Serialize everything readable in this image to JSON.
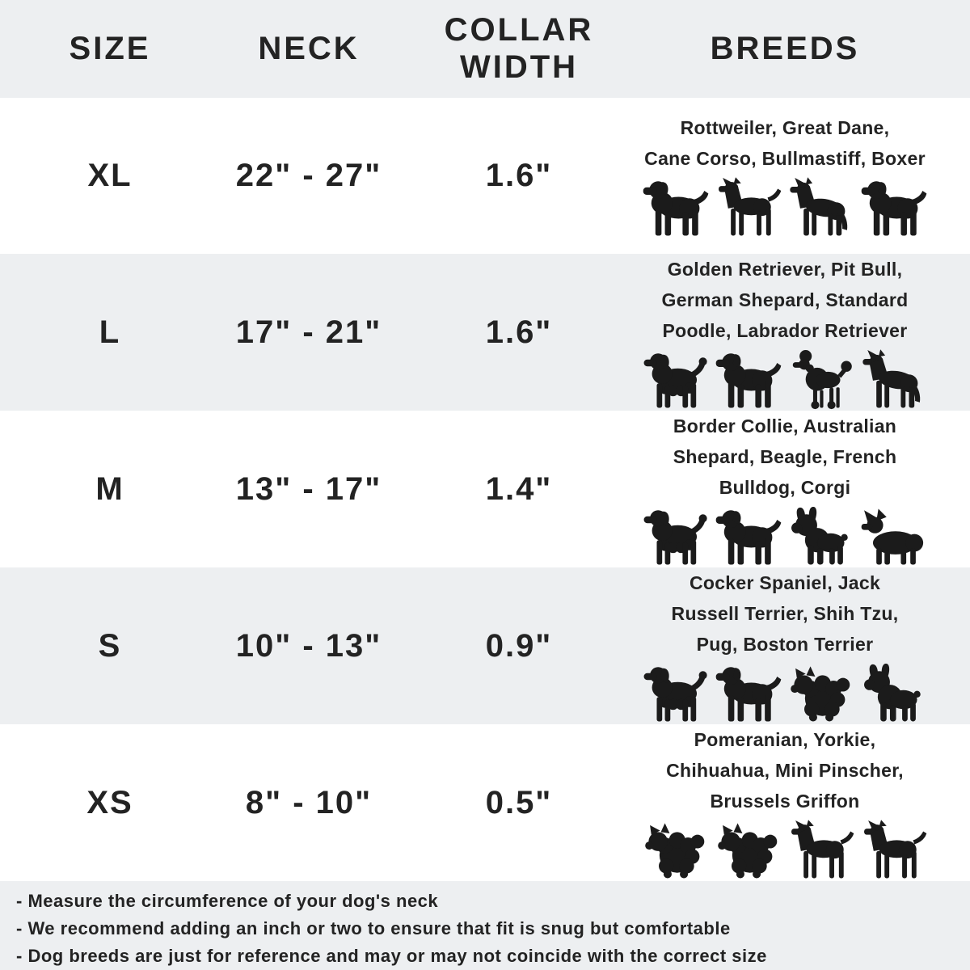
{
  "theme": {
    "band_gray": "#edeff1",
    "band_white": "#ffffff",
    "text_color": "#232323",
    "silhouette_color": "#1b1b1b"
  },
  "header": {
    "size": "SIZE",
    "neck": "NECK",
    "collar_width": "COLLAR WIDTH",
    "breeds": "BREEDS"
  },
  "rows": [
    {
      "size": "XL",
      "neck": "22\" - 27\"",
      "collar_width": "1.6\"",
      "breeds_lines": [
        "Rottweiler, Great Dane,",
        "Cane Corso, Bullmastiff, Boxer"
      ],
      "icons": [
        {
          "name": "rottweiler-icon",
          "shape": "sym-stocky"
        },
        {
          "name": "great-dane-icon",
          "shape": "sym-prick"
        },
        {
          "name": "doberman-icon",
          "shape": "sym-shepherd"
        },
        {
          "name": "bullmastiff-icon",
          "shape": "sym-stocky"
        }
      ]
    },
    {
      "size": "L",
      "neck": "17\" - 21\"",
      "collar_width": "1.6\"",
      "breeds_lines": [
        "Golden Retriever, Pit Bull,",
        "German Shepard, Standard",
        "Poodle, Labrador Retriever"
      ],
      "icons": [
        {
          "name": "golden-retriever-icon",
          "shape": "sym-fluffy"
        },
        {
          "name": "labrador-icon",
          "shape": "sym-stocky"
        },
        {
          "name": "poodle-icon",
          "shape": "sym-poodle"
        },
        {
          "name": "german-shepherd-icon",
          "shape": "sym-shepherd"
        }
      ]
    },
    {
      "size": "M",
      "neck": "13\" - 17\"",
      "collar_width": "1.4\"",
      "breeds_lines": [
        "Border Collie, Australian",
        "Shepard, Beagle, French",
        "Bulldog, Corgi"
      ],
      "icons": [
        {
          "name": "border-collie-icon",
          "shape": "sym-fluffy"
        },
        {
          "name": "beagle-icon",
          "shape": "sym-stocky"
        },
        {
          "name": "french-bulldog-icon",
          "shape": "sym-bully"
        },
        {
          "name": "corgi-icon",
          "shape": "sym-corgi"
        }
      ]
    },
    {
      "size": "S",
      "neck": "10\" - 13\"",
      "collar_width": "0.9\"",
      "breeds_lines": [
        "Cocker Spaniel, Jack",
        "Russell Terrier, Shih Tzu,",
        "Pug, Boston Terrier"
      ],
      "icons": [
        {
          "name": "cocker-spaniel-icon",
          "shape": "sym-fluffy"
        },
        {
          "name": "jack-russell-terrier-icon",
          "shape": "sym-stocky"
        },
        {
          "name": "shih-tzu-icon",
          "shape": "sym-smallfluffy"
        },
        {
          "name": "pug-icon",
          "shape": "sym-bully"
        }
      ]
    },
    {
      "size": "XS",
      "neck": "8\" - 10\"",
      "collar_width": "0.5\"",
      "breeds_lines": [
        "Pomeranian, Yorkie,",
        "Chihuahua, Mini Pinscher,",
        "Brussels Griffon"
      ],
      "icons": [
        {
          "name": "pomeranian-icon",
          "shape": "sym-smallfluffy"
        },
        {
          "name": "yorkie-icon",
          "shape": "sym-smallfluffy"
        },
        {
          "name": "chihuahua-icon",
          "shape": "sym-prick"
        },
        {
          "name": "min-pin-icon",
          "shape": "sym-prick"
        }
      ]
    }
  ],
  "notes": [
    "- Measure the circumference of your dog's neck",
    "- We recommend adding an inch or two to ensure that fit is snug but comfortable",
    "- Dog breeds are just for reference and may or may not coincide with the correct size"
  ],
  "chart_data": {
    "type": "table",
    "title": "Dog collar size chart",
    "columns": [
      "SIZE",
      "NECK",
      "COLLAR WIDTH",
      "BREEDS"
    ],
    "rows": [
      [
        "XL",
        "22\" - 27\"",
        "1.6\"",
        "Rottweiler, Great Dane, Cane Corso, Bullmastiff, Boxer"
      ],
      [
        "L",
        "17\" - 21\"",
        "1.6\"",
        "Golden Retriever, Pit Bull, German Shepard, Standard Poodle, Labrador Retriever"
      ],
      [
        "M",
        "13\" - 17\"",
        "1.4\"",
        "Border Collie, Australian Shepard, Beagle, French Bulldog, Corgi"
      ],
      [
        "S",
        "10\" - 13\"",
        "0.9\"",
        "Cocker Spaniel, Jack Russell Terrier, Shih Tzu, Pug, Boston Terrier"
      ],
      [
        "XS",
        "8\" - 10\"",
        "0.5\"",
        "Pomeranian, Yorkie, Chihuahua, Mini Pinscher, Brussels Griffon"
      ]
    ],
    "notes": [
      "- Measure the circumference of your dog's neck",
      "- We recommend adding an inch or two to ensure that fit is snug but comfortable",
      "- Dog breeds are just for reference and may or may not coincide with the correct size"
    ],
    "layout": {
      "row_banding": [
        "gray-header",
        "white",
        "gray",
        "white",
        "gray",
        "white",
        "gray-footer"
      ],
      "grid": "off"
    }
  }
}
